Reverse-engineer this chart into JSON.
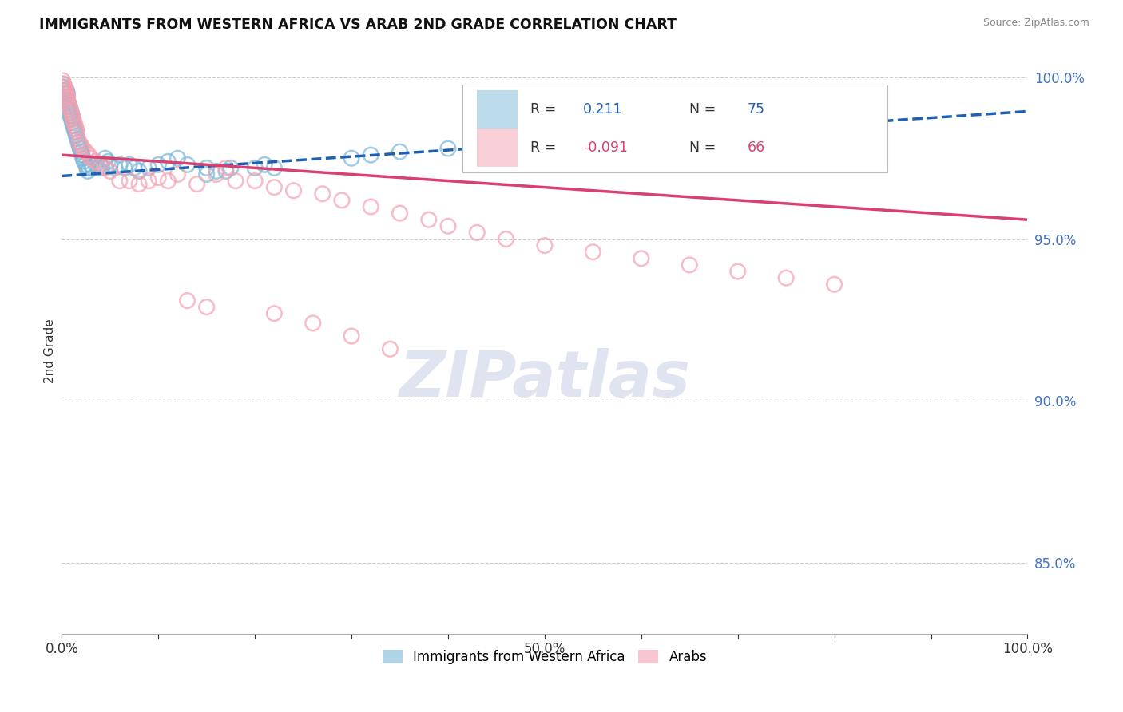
{
  "title": "IMMIGRANTS FROM WESTERN AFRICA VS ARAB 2ND GRADE CORRELATION CHART",
  "source": "Source: ZipAtlas.com",
  "ylabel": "2nd Grade",
  "watermark_text": "ZIPatlas",
  "legend_label_blue": "Immigrants from Western Africa",
  "legend_label_pink": "Arabs",
  "blue_R": 0.211,
  "blue_N": 75,
  "pink_R": -0.091,
  "pink_N": 66,
  "blue_scatter_color": "#7ab8d9",
  "pink_scatter_color": "#f4a0b0",
  "blue_line_color": "#2060b0",
  "pink_line_color": "#d94070",
  "blue_trend_x": [
    0.0,
    1.0
  ],
  "blue_trend_y": [
    0.9695,
    0.9895
  ],
  "pink_trend_x": [
    0.0,
    1.0
  ],
  "pink_trend_y": [
    0.976,
    0.956
  ],
  "xlim": [
    0.0,
    1.0
  ],
  "ylim": [
    0.828,
    1.003
  ],
  "yticks": [
    0.85,
    0.9,
    0.95,
    1.0
  ],
  "xticks": [
    0.0,
    0.1,
    0.2,
    0.3,
    0.4,
    0.5,
    0.6,
    0.7,
    0.8,
    0.9,
    1.0
  ],
  "grid_color": "#cccccc",
  "bg_color": "#ffffff",
  "blue_x": [
    0.001,
    0.001,
    0.002,
    0.002,
    0.003,
    0.003,
    0.004,
    0.004,
    0.005,
    0.005,
    0.005,
    0.006,
    0.006,
    0.006,
    0.007,
    0.007,
    0.008,
    0.008,
    0.009,
    0.009,
    0.01,
    0.01,
    0.011,
    0.011,
    0.012,
    0.013,
    0.014,
    0.015,
    0.016,
    0.017,
    0.018,
    0.019,
    0.02,
    0.021,
    0.022,
    0.023,
    0.025,
    0.026,
    0.027,
    0.028,
    0.03,
    0.032,
    0.035,
    0.038,
    0.04,
    0.042,
    0.045,
    0.048,
    0.05,
    0.055,
    0.06,
    0.065,
    0.07,
    0.075,
    0.08,
    0.09,
    0.1,
    0.11,
    0.12,
    0.13,
    0.15,
    0.17,
    0.2,
    0.21,
    0.22,
    0.15,
    0.16,
    0.175,
    0.3,
    0.32,
    0.35,
    0.4,
    0.45,
    0.5,
    0.55
  ],
  "blue_y": [
    0.996,
    0.998,
    0.995,
    0.997,
    0.994,
    0.996,
    0.993,
    0.995,
    0.992,
    0.994,
    0.996,
    0.991,
    0.993,
    0.995,
    0.99,
    0.992,
    0.989,
    0.991,
    0.988,
    0.99,
    0.987,
    0.989,
    0.986,
    0.988,
    0.985,
    0.984,
    0.983,
    0.982,
    0.981,
    0.98,
    0.979,
    0.978,
    0.977,
    0.976,
    0.975,
    0.974,
    0.973,
    0.972,
    0.971,
    0.972,
    0.973,
    0.972,
    0.973,
    0.972,
    0.973,
    0.972,
    0.975,
    0.974,
    0.973,
    0.972,
    0.973,
    0.972,
    0.973,
    0.972,
    0.971,
    0.972,
    0.973,
    0.974,
    0.975,
    0.973,
    0.972,
    0.971,
    0.972,
    0.973,
    0.972,
    0.97,
    0.971,
    0.972,
    0.975,
    0.976,
    0.977,
    0.978,
    0.979,
    0.98,
    0.981
  ],
  "pink_x": [
    0.001,
    0.001,
    0.002,
    0.002,
    0.003,
    0.003,
    0.004,
    0.004,
    0.005,
    0.005,
    0.006,
    0.007,
    0.008,
    0.009,
    0.01,
    0.011,
    0.012,
    0.013,
    0.014,
    0.015,
    0.016,
    0.018,
    0.02,
    0.022,
    0.025,
    0.028,
    0.03,
    0.035,
    0.04,
    0.045,
    0.05,
    0.06,
    0.07,
    0.08,
    0.09,
    0.1,
    0.11,
    0.12,
    0.14,
    0.16,
    0.17,
    0.18,
    0.2,
    0.22,
    0.24,
    0.27,
    0.29,
    0.32,
    0.35,
    0.38,
    0.4,
    0.43,
    0.46,
    0.5,
    0.55,
    0.6,
    0.65,
    0.7,
    0.75,
    0.8,
    0.13,
    0.15,
    0.22,
    0.26,
    0.3,
    0.34
  ],
  "pink_y": [
    0.999,
    0.997,
    0.998,
    0.996,
    0.997,
    0.995,
    0.996,
    0.994,
    0.995,
    0.993,
    0.994,
    0.992,
    0.991,
    0.99,
    0.989,
    0.988,
    0.987,
    0.986,
    0.985,
    0.984,
    0.983,
    0.98,
    0.979,
    0.978,
    0.977,
    0.976,
    0.975,
    0.974,
    0.973,
    0.972,
    0.971,
    0.968,
    0.968,
    0.967,
    0.968,
    0.969,
    0.968,
    0.97,
    0.967,
    0.97,
    0.972,
    0.968,
    0.968,
    0.966,
    0.965,
    0.964,
    0.962,
    0.96,
    0.958,
    0.956,
    0.954,
    0.952,
    0.95,
    0.948,
    0.946,
    0.944,
    0.942,
    0.94,
    0.938,
    0.936,
    0.931,
    0.929,
    0.927,
    0.924,
    0.92,
    0.916
  ]
}
